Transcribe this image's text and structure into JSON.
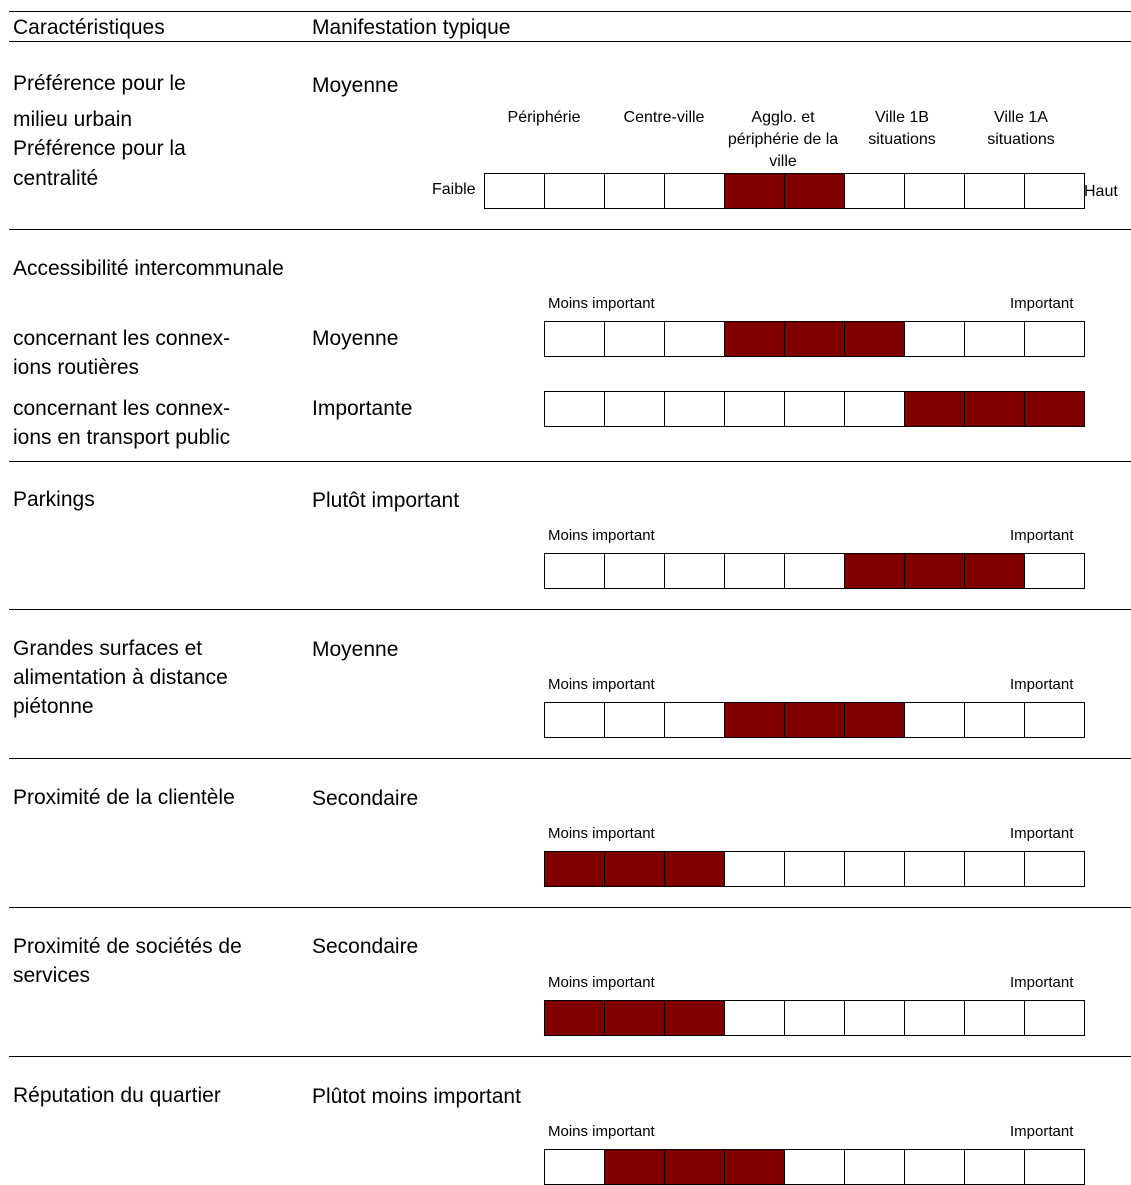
{
  "header": {
    "col1": "Caractéristiques",
    "col2": "Manifestation typique"
  },
  "scale": {
    "low_label": "Moins important",
    "high_label": "Important"
  },
  "colors": {
    "filled": "#800000",
    "empty": "#ffffff"
  },
  "rows": [
    {
      "label_lines": [
        "Préférence pour le",
        "milieu urbain",
        "Préférence pour la",
        "centralité"
      ],
      "value": "Moyenne",
      "bar_left": "Faible",
      "bar_right": "Haut",
      "categories": [
        "Périphérie",
        "Centre-ville",
        "Agglo. et périphérie de la ville",
        "Ville 1B situations",
        "Ville 1A situations"
      ],
      "cells": 10,
      "filled": [
        4,
        5
      ]
    },
    {
      "section": "Accessibilité intercommunale",
      "label_lines": [
        "concernant les connex-",
        "ions routières"
      ],
      "value": "Moyenne",
      "cells": 9,
      "filled": [
        3,
        4,
        5
      ]
    },
    {
      "label_lines": [
        "concernant les connex-",
        "ions en transport public"
      ],
      "value": "Importante",
      "cells": 9,
      "filled": [
        6,
        7,
        8
      ]
    },
    {
      "label_lines": [
        "Parkings"
      ],
      "value": "Plutôt important",
      "cells": 9,
      "filled": [
        5,
        6,
        7
      ]
    },
    {
      "label_lines": [
        "Grandes surfaces et",
        "alimentation à distance",
        "piétonne"
      ],
      "value": "Moyenne",
      "cells": 9,
      "filled": [
        3,
        4,
        5
      ]
    },
    {
      "label_lines": [
        "Proximité de la clientèle"
      ],
      "value": "Secondaire",
      "cells": 9,
      "filled": [
        0,
        1,
        2
      ]
    },
    {
      "label_lines": [
        "Proximité de sociétés de",
        "services"
      ],
      "value": "Secondaire",
      "cells": 9,
      "filled": [
        0,
        1,
        2
      ]
    },
    {
      "label_lines": [
        "Réputation du quartier"
      ],
      "value": "Plûtot moins important",
      "cells": 9,
      "filled": [
        1,
        2,
        3
      ]
    }
  ]
}
